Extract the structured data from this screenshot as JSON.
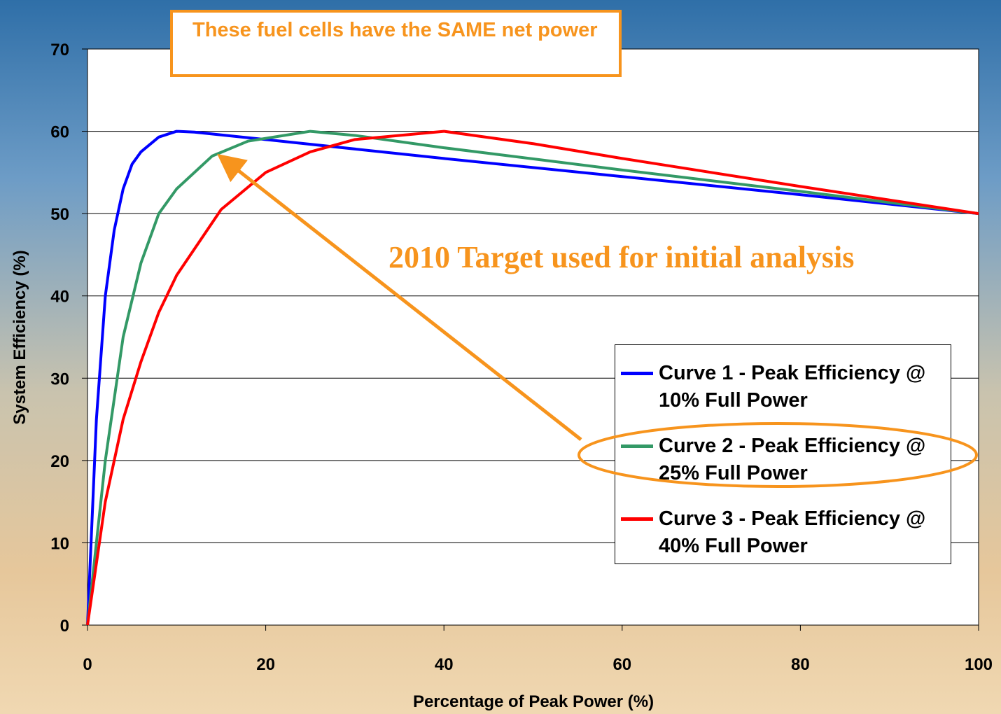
{
  "chart_data": {
    "type": "line",
    "annotations": [
      "These fuel cells have the SAME net power",
      "2010 Target used for initial analysis"
    ],
    "xlabel": "Percentage of Peak Power (%)",
    "ylabel": "System Efficiency (%)",
    "xlim": [
      0,
      100
    ],
    "xticks": [
      0,
      20,
      40,
      60,
      80,
      100
    ],
    "ylim": [
      0,
      70
    ],
    "yticks": [
      0,
      10,
      20,
      30,
      40,
      50,
      60,
      70
    ],
    "grid": true,
    "series": [
      {
        "name": "Curve 1 - Peak Efficiency @ 10% Full Power",
        "color": "#0000ff",
        "x": [
          0,
          1,
          2,
          3,
          4,
          5,
          6,
          8,
          10,
          12,
          20,
          40,
          60,
          80,
          100
        ],
        "values": [
          0,
          25,
          40,
          48,
          53,
          56,
          57.5,
          59.3,
          60,
          59.9,
          59,
          56.7,
          54.5,
          52.3,
          50
        ]
      },
      {
        "name": "Curve 2 - Peak Efficiency @ 25% Full Power",
        "color": "#339966",
        "x": [
          0,
          2,
          4,
          6,
          8,
          10,
          14,
          18,
          25,
          30,
          40,
          60,
          80,
          100
        ],
        "values": [
          0,
          20,
          35,
          44,
          50,
          53,
          57,
          58.8,
          60,
          59.5,
          58,
          55.3,
          52.7,
          50
        ]
      },
      {
        "name": "Curve 3 - Peak Efficiency @ 40% Full Power",
        "color": "#ff0000",
        "x": [
          0,
          2,
          4,
          6,
          8,
          10,
          15,
          20,
          25,
          30,
          40,
          50,
          60,
          80,
          100
        ],
        "values": [
          0,
          15,
          25,
          32,
          38,
          42.5,
          50.5,
          55,
          57.5,
          59,
          60,
          58.5,
          56.7,
          53.3,
          50
        ]
      }
    ]
  }
}
